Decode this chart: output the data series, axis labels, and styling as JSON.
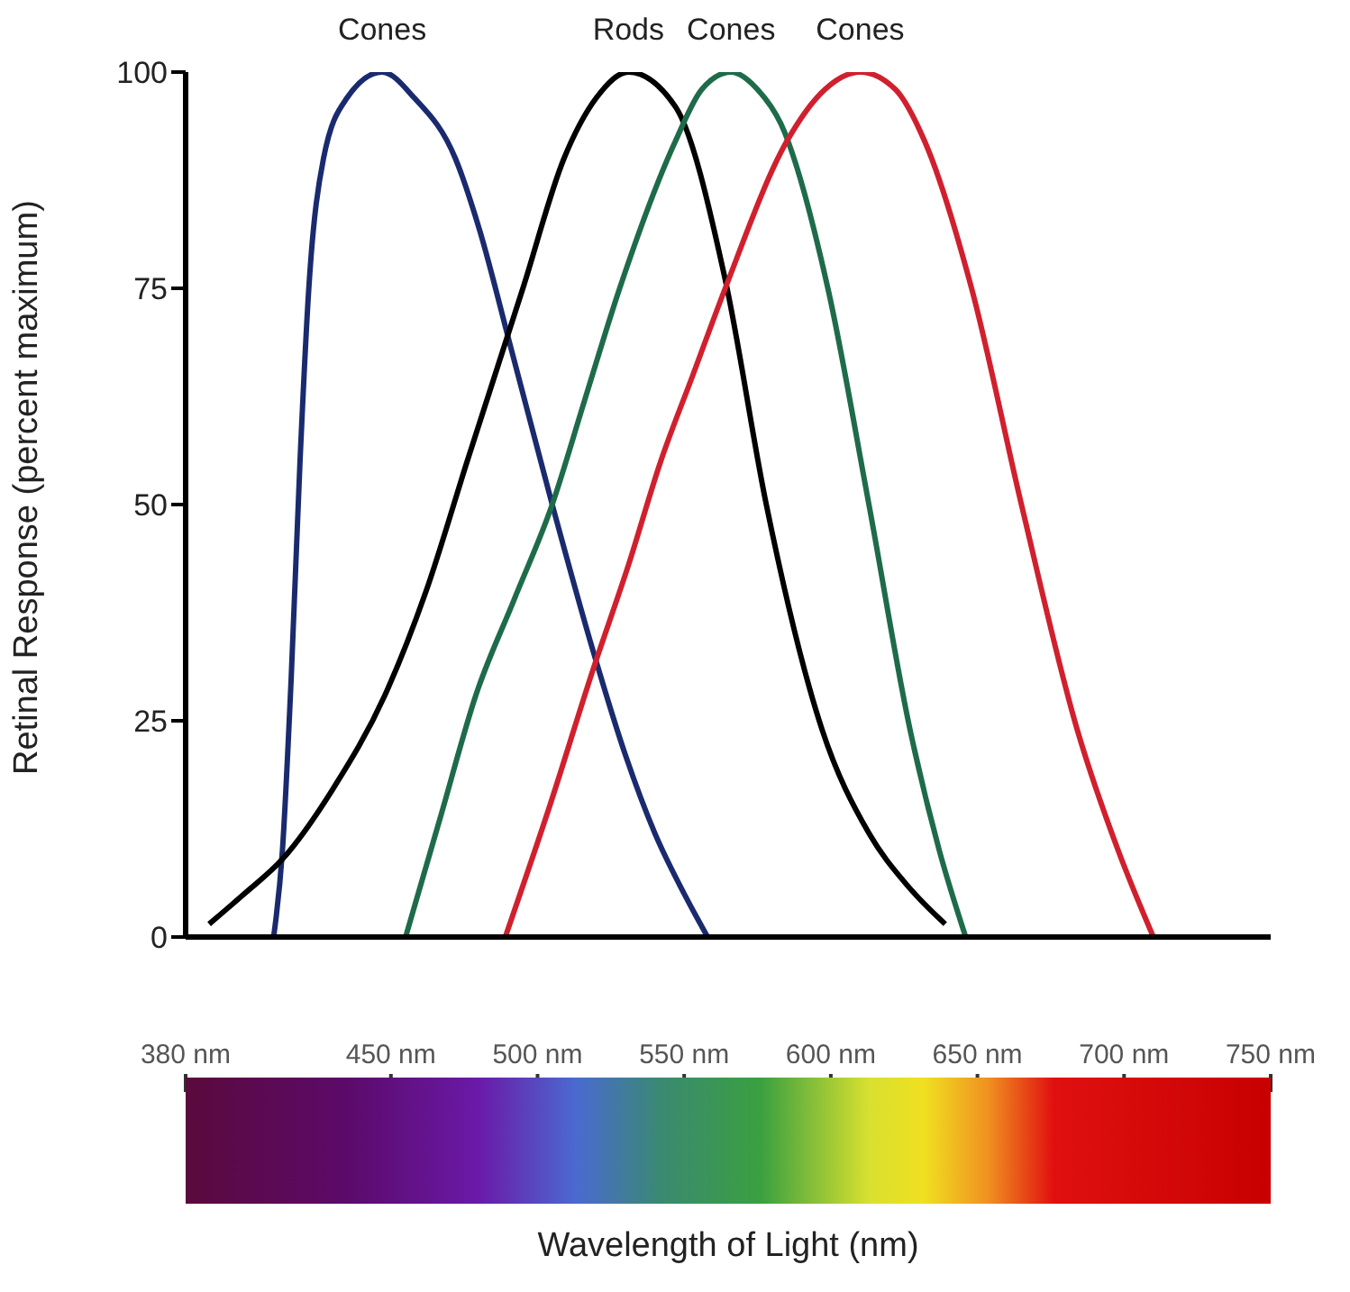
{
  "chart_data": {
    "type": "line",
    "ylabel": "Retinal Response (percent maximum)",
    "xlabel": "Wavelength of Light (nm)",
    "xlim": [
      380,
      750
    ],
    "xticks": [
      {
        "value": 380,
        "label": "380 nm"
      },
      {
        "value": 450,
        "label": "450 nm"
      },
      {
        "value": 500,
        "label": "500 nm"
      },
      {
        "value": 550,
        "label": "550 nm"
      },
      {
        "value": 600,
        "label": "600 nm"
      },
      {
        "value": 650,
        "label": "650 nm"
      },
      {
        "value": 700,
        "label": "700 nm"
      },
      {
        "value": 750,
        "label": "750 nm"
      }
    ],
    "ylim": [
      0,
      100
    ],
    "yticks": [
      0,
      25,
      50,
      75,
      100
    ],
    "series": [
      {
        "color": "#1a2a6e",
        "x": [
          410,
          413,
          416,
          419,
          422,
          427,
          435,
          447,
          458,
          472,
          480,
          491,
          505,
          519,
          530,
          540,
          550,
          558
        ],
        "values": [
          0,
          10,
          30,
          55,
          75,
          90,
          97,
          100,
          97,
          90,
          82,
          68,
          50,
          33,
          21,
          12,
          5,
          0
        ]
      },
      {
        "color": "#000000",
        "x": [
          388,
          400,
          413,
          430,
          448,
          462,
          476,
          495,
          509,
          520,
          531,
          547,
          564,
          578,
          597,
          613,
          626,
          639
        ],
        "values": [
          1.5,
          5,
          9,
          17,
          28,
          40,
          55,
          75,
          90,
          97,
          100,
          96,
          76,
          50,
          24,
          12,
          6,
          1.5
        ]
      },
      {
        "color": "#1e6b4a",
        "x": [
          455,
          467,
          479,
          492,
          505,
          516,
          528,
          547,
          556,
          566,
          575,
          583,
          599,
          613,
          627,
          637,
          646
        ],
        "values": [
          0,
          14,
          28,
          39,
          50,
          62,
          75,
          92,
          98,
          100,
          98,
          94,
          75,
          50,
          24,
          10,
          0
        ]
      },
      {
        "color": "#d0202e",
        "x": [
          489,
          504,
          519,
          531,
          542,
          553,
          564,
          585,
          598,
          610,
          622,
          632,
          648,
          665,
          684,
          698,
          710
        ],
        "values": [
          0,
          15,
          31,
          43,
          55,
          65,
          75,
          92,
          98,
          100,
          98,
          92,
          75,
          50,
          24,
          10,
          0
        ]
      }
    ],
    "annotations": [
      {
        "text": "Cones",
        "x": 447,
        "y": 100
      },
      {
        "text": "Rods",
        "x": 531,
        "y": 100
      },
      {
        "text": "Cones",
        "x": 566,
        "y": 100
      },
      {
        "text": "Cones",
        "x": 610,
        "y": 100
      }
    ]
  }
}
